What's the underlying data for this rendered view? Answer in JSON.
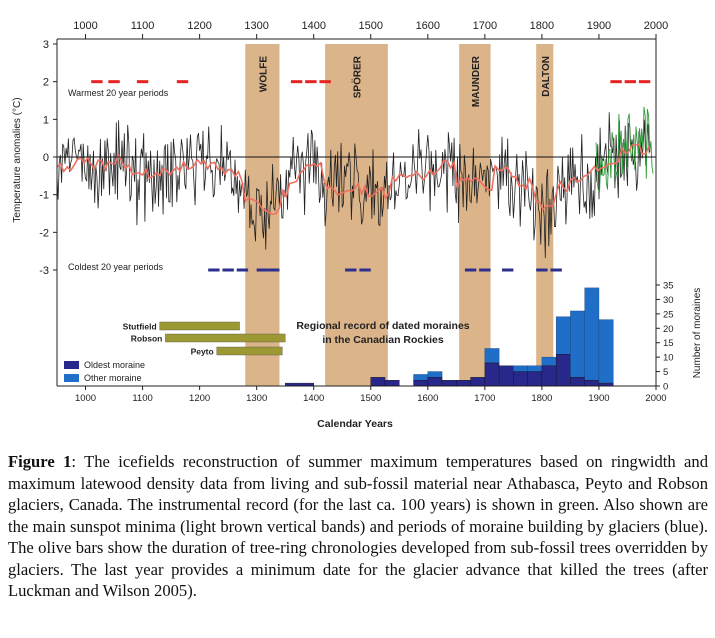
{
  "chart_data": {
    "type": "line",
    "x_range": [
      950,
      2000
    ],
    "top_axis_ticks": [
      1000,
      1100,
      1200,
      1300,
      1400,
      1500,
      1600,
      1700,
      1800,
      1900,
      2000
    ],
    "bottom_axis_ticks": [
      1000,
      1100,
      1200,
      1300,
      1400,
      1500,
      1600,
      1700,
      1800,
      1900,
      2000
    ],
    "xlabel": "Calendar Years",
    "ylabel_left": "Temperature anomalies (°C)",
    "ylim_left": [
      -3,
      3
    ],
    "left_ticks": [
      3,
      2,
      1,
      0,
      -1,
      -2,
      -3
    ],
    "ylabel_right": "Number of moraines",
    "ylim_right": [
      0,
      35
    ],
    "right_ticks": [
      35,
      30,
      25,
      20,
      15,
      10,
      5,
      0
    ],
    "minima": [
      {
        "name": "WOLFE",
        "start": 1280,
        "end": 1340
      },
      {
        "name": "SPÖRER",
        "start": 1420,
        "end": 1530
      },
      {
        "name": "MAUNDER",
        "start": 1655,
        "end": 1710
      },
      {
        "name": "DALTON",
        "start": 1790,
        "end": 1820
      }
    ],
    "warm_label": "Warmest 20 year periods",
    "warm_periods": [
      [
        1010,
        1030
      ],
      [
        1040,
        1060
      ],
      [
        1090,
        1110
      ],
      [
        1160,
        1180
      ],
      [
        1360,
        1380
      ],
      [
        1385,
        1405
      ],
      [
        1410,
        1430
      ],
      [
        1920,
        1940
      ],
      [
        1945,
        1965
      ],
      [
        1970,
        1990
      ]
    ],
    "cold_label": "Coldest 20 year periods",
    "cold_periods": [
      [
        1215,
        1235
      ],
      [
        1240,
        1260
      ],
      [
        1265,
        1285
      ],
      [
        1300,
        1320
      ],
      [
        1320,
        1340
      ],
      [
        1455,
        1475
      ],
      [
        1480,
        1500
      ],
      [
        1665,
        1685
      ],
      [
        1690,
        1710
      ],
      [
        1730,
        1750
      ],
      [
        1790,
        1810
      ],
      [
        1815,
        1835
      ]
    ],
    "olive_bars": [
      {
        "name": "Stutfield",
        "start": 1130,
        "end": 1270
      },
      {
        "name": "Robson",
        "start": 1140,
        "end": 1350
      },
      {
        "name": "Peyto",
        "start": 1230,
        "end": 1345
      }
    ],
    "moraine_title_line1": "Regional record of dated moraines",
    "moraine_title_line2": "in the Canadian Rockies",
    "moraine_bins": [
      {
        "start": 1350,
        "end": 1400,
        "oldest": 1,
        "other": 0
      },
      {
        "start": 1500,
        "end": 1525,
        "oldest": 3,
        "other": 0
      },
      {
        "start": 1525,
        "end": 1550,
        "oldest": 2,
        "other": 0
      },
      {
        "start": 1575,
        "end": 1600,
        "oldest": 2,
        "other": 2
      },
      {
        "start": 1600,
        "end": 1625,
        "oldest": 3,
        "other": 2
      },
      {
        "start": 1625,
        "end": 1650,
        "oldest": 2,
        "other": 0
      },
      {
        "start": 1650,
        "end": 1675,
        "oldest": 2,
        "other": 0
      },
      {
        "start": 1675,
        "end": 1700,
        "oldest": 3,
        "other": 0
      },
      {
        "start": 1700,
        "end": 1725,
        "oldest": 8,
        "other": 5
      },
      {
        "start": 1725,
        "end": 1750,
        "oldest": 7,
        "other": 0
      },
      {
        "start": 1750,
        "end": 1775,
        "oldest": 5,
        "other": 2
      },
      {
        "start": 1775,
        "end": 1800,
        "oldest": 5,
        "other": 2
      },
      {
        "start": 1800,
        "end": 1825,
        "oldest": 7,
        "other": 3
      },
      {
        "start": 1825,
        "end": 1850,
        "oldest": 11,
        "other": 13
      },
      {
        "start": 1850,
        "end": 1875,
        "oldest": 3,
        "other": 23
      },
      {
        "start": 1875,
        "end": 1900,
        "oldest": 2,
        "other": 32
      },
      {
        "start": 1900,
        "end": 1925,
        "oldest": 1,
        "other": 22
      }
    ],
    "legend_oldest": "Oldest moraine",
    "legend_other": "Other moraine",
    "colors": {
      "minima_band": "#dcb489",
      "reconstruction": "#222222",
      "smoothed": "#f07060",
      "instrumental": "#2e9a3a",
      "warm": "#e52421",
      "cold": "#2b2f8f",
      "olive": "#9c9833",
      "oldest_moraine": "#27288a",
      "other_moraine": "#1f6fc9"
    }
  },
  "caption": {
    "label": "Figure 1",
    "text": ": The icefields reconstruction of summer maximum temperatures based on ringwidth and maximum latewood density data from living and sub-fossil material near Athabasca, Peyto and Robson glaciers, Canada. The instrumental record (for the last ca. 100 years) is shown in green. Also shown are the main sunspot minima (light brown vertical bands) and periods of moraine building by glaciers (blue). The olive bars show the duration of tree-ring chronologies developed from sub-fossil trees overridden by glaciers. The last year provides a minimum date for the glacier advance that killed the trees (after Luckman and Wilson 2005)."
  }
}
